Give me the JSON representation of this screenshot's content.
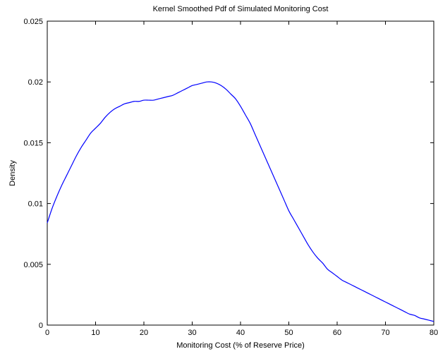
{
  "chart_data": {
    "type": "line",
    "title": "Kernel Smoothed Pdf of Simulated Monitoring Cost",
    "xlabel": "Monitoring Cost (% of Reserve Price)",
    "ylabel": "Density",
    "xlim": [
      0,
      80
    ],
    "ylim": [
      0,
      0.025
    ],
    "x_ticks": [
      0,
      10,
      20,
      30,
      40,
      50,
      60,
      70,
      80
    ],
    "x_tick_labels": [
      "0",
      "10",
      "20",
      "30",
      "40",
      "50",
      "60",
      "70",
      "80"
    ],
    "y_ticks": [
      0,
      0.005,
      0.01,
      0.015,
      0.02,
      0.025
    ],
    "y_tick_labels": [
      "0",
      "0.005",
      "0.01",
      "0.015",
      "0.02",
      "0.025"
    ],
    "grid": false,
    "line_color": "#0000ff",
    "series": [
      {
        "x": [
          0,
          1,
          2,
          3,
          4,
          5,
          6,
          7,
          8,
          9,
          10,
          11,
          12,
          13,
          14,
          15,
          16,
          17,
          18,
          19,
          20,
          21,
          22,
          23,
          24,
          25,
          26,
          27,
          28,
          29,
          30,
          31,
          32,
          33,
          34,
          35,
          36,
          37,
          38,
          39,
          40,
          41,
          42,
          43,
          44,
          45,
          46,
          47,
          48,
          49,
          50,
          51,
          52,
          53,
          54,
          55,
          56,
          57,
          58,
          59,
          60,
          61,
          62,
          63,
          64,
          65,
          66,
          67,
          68,
          69,
          70,
          71,
          72,
          73,
          74,
          75,
          76,
          77,
          78,
          79,
          80
        ],
        "y": [
          0.0084,
          0.0096,
          0.0106,
          0.0115,
          0.0123,
          0.0131,
          0.0139,
          0.0146,
          0.0152,
          0.0158,
          0.0162,
          0.0166,
          0.0171,
          0.0175,
          0.0178,
          0.018,
          0.0182,
          0.0183,
          0.0184,
          0.0184,
          0.0185,
          0.0185,
          0.0185,
          0.0186,
          0.0187,
          0.0188,
          0.0189,
          0.0191,
          0.0193,
          0.0195,
          0.0197,
          0.0198,
          0.0199,
          0.02,
          0.02,
          0.0199,
          0.0197,
          0.0194,
          0.019,
          0.0186,
          0.018,
          0.0173,
          0.0166,
          0.0157,
          0.0148,
          0.0139,
          0.013,
          0.0121,
          0.0112,
          0.0103,
          0.0094,
          0.0087,
          0.008,
          0.0073,
          0.0066,
          0.006,
          0.0055,
          0.0051,
          0.0046,
          0.0043,
          0.004,
          0.0037,
          0.0035,
          0.0033,
          0.0031,
          0.0029,
          0.0027,
          0.0025,
          0.0023,
          0.0021,
          0.0019,
          0.0017,
          0.0015,
          0.0013,
          0.0011,
          0.0009,
          0.0008,
          0.0006,
          0.0005,
          0.0004,
          0.0003
        ]
      }
    ]
  }
}
